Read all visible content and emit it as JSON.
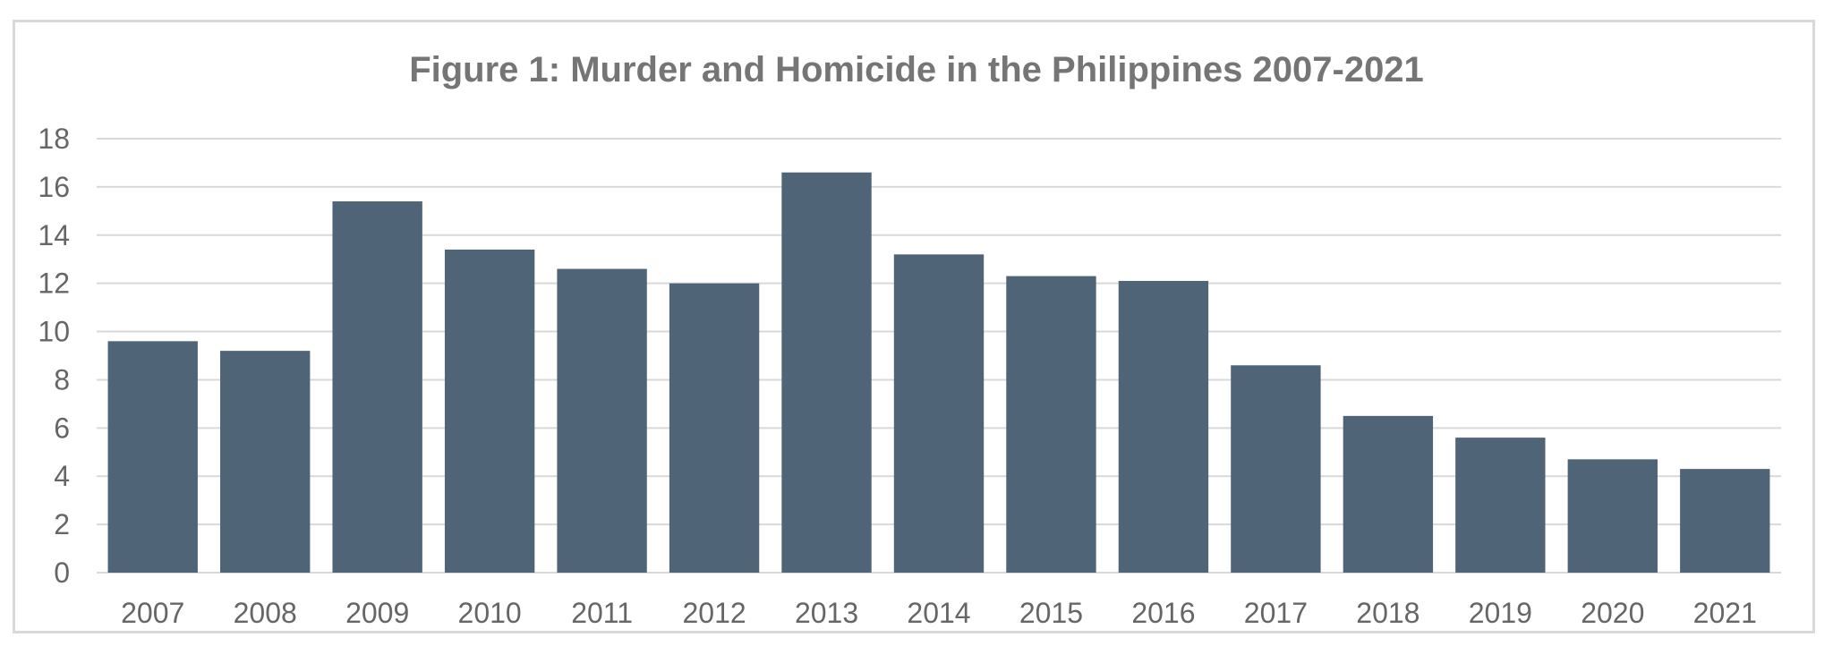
{
  "chart_data": {
    "type": "bar",
    "title": "Figure 1: Murder and Homicide in the Philippines 2007-2021",
    "xlabel": "",
    "ylabel": "",
    "categories": [
      "2007",
      "2008",
      "2009",
      "2010",
      "2011",
      "2012",
      "2013",
      "2014",
      "2015",
      "2016",
      "2017",
      "2018",
      "2019",
      "2020",
      "2021"
    ],
    "values": [
      9.6,
      9.2,
      15.4,
      13.4,
      12.6,
      12.0,
      16.6,
      13.2,
      12.3,
      12.1,
      8.6,
      6.5,
      5.6,
      4.7,
      4.3
    ],
    "ylim": [
      0,
      18
    ],
    "yticks": [
      "0",
      "2",
      "4",
      "6",
      "8",
      "10",
      "12",
      "14",
      "16",
      "18"
    ],
    "grid": true,
    "legend": "none",
    "colors": {
      "bar": "#506478",
      "grid": "#d9d9d9",
      "text": "#666666",
      "title": "#757575"
    }
  }
}
